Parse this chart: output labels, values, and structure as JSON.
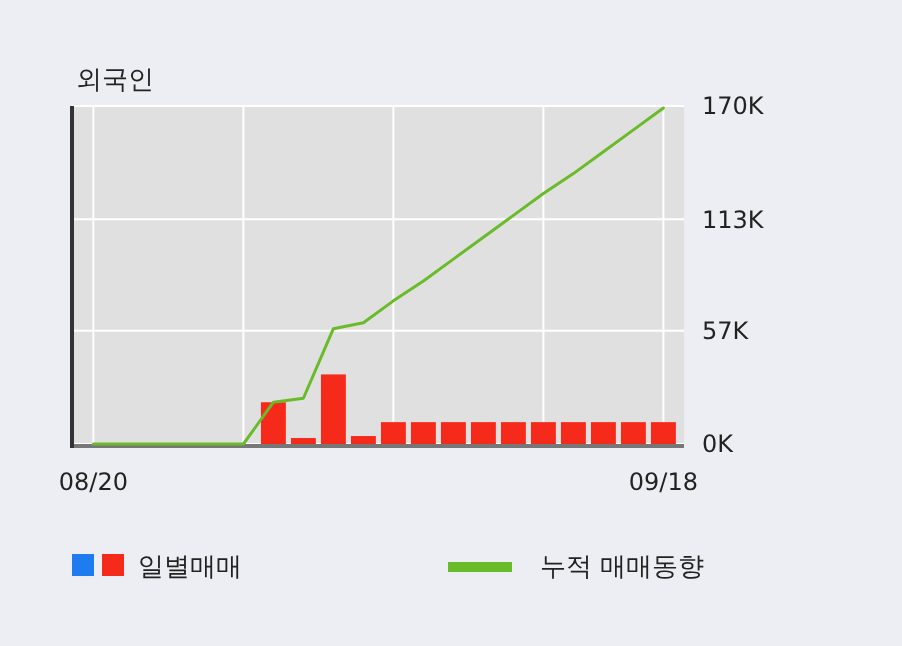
{
  "chart_data": {
    "type": "bar",
    "title": "외국인",
    "categories": [
      "08/20",
      null,
      null,
      null,
      null,
      null,
      null,
      null,
      null,
      null,
      null,
      null,
      null,
      null,
      null,
      null,
      null,
      null,
      null,
      "09/18"
    ],
    "series": [
      {
        "name": "일별매매",
        "color": "#f52a1a",
        "values": [
          0,
          0,
          0,
          0,
          0,
          0,
          21000,
          3000,
          35000,
          4000,
          11000,
          11000,
          11000,
          11000,
          11000,
          11000,
          11000,
          11000,
          11000,
          11000
        ]
      },
      {
        "name": "누적 매매동향",
        "type": "line",
        "color": "#6abb2a",
        "values": [
          0,
          0,
          0,
          0,
          0,
          0,
          21000,
          23000,
          58000,
          61000,
          72000,
          82000,
          93000,
          104000,
          115000,
          126000,
          136000,
          147000,
          158000,
          169000
        ]
      }
    ],
    "ylim": [
      0,
      170000
    ],
    "yticks": [
      {
        "value": 0,
        "label": "0K"
      },
      {
        "value": 57000,
        "label": "57K"
      },
      {
        "value": 113000,
        "label": "113K"
      },
      {
        "value": 170000,
        "label": "170K"
      }
    ],
    "grid": true,
    "legend": "bottom"
  }
}
